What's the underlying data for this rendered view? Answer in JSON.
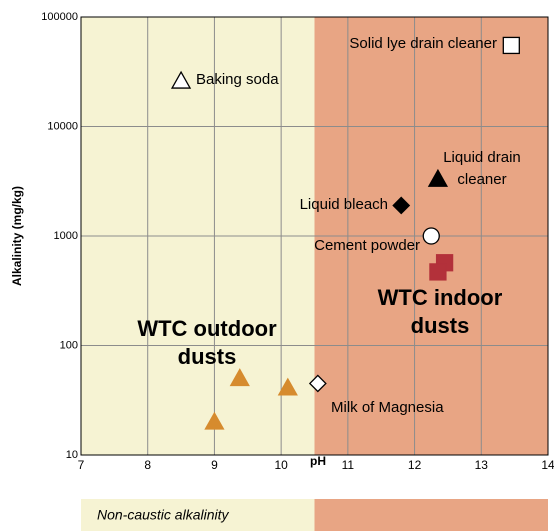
{
  "chart_data": {
    "type": "scatter",
    "x_label": "pH",
    "y_label": "Alkalinity (mg/kg)",
    "xlim": [
      7,
      14
    ],
    "xticks": [
      7,
      8,
      9,
      10,
      11,
      12,
      13,
      14
    ],
    "ylim": [
      10,
      100000
    ],
    "yticks": [
      10,
      100,
      1000,
      10000,
      100000
    ],
    "log_y": true,
    "grid": true,
    "regions": [
      {
        "xlim": [
          7,
          10.5
        ],
        "color": "#f6f3d3",
        "label": "Non-caustic alkalinity"
      },
      {
        "xlim": [
          10.5,
          14
        ],
        "color": "#e8a584"
      }
    ],
    "series": [
      {
        "name": "Solid lye drain cleaner",
        "marker": "square",
        "filled": false,
        "color": "#000000",
        "label_color": "#000000",
        "x": [
          13.45
        ],
        "values": [
          55000
        ]
      },
      {
        "name": "Baking soda",
        "marker": "triangle",
        "filled": false,
        "color": "#000000",
        "label_color": "#000000",
        "x": [
          8.5
        ],
        "values": [
          26000
        ]
      },
      {
        "name": "Liquid drain\ncleaner",
        "marker": "triangle",
        "filled": true,
        "color": "#000000",
        "label_color": "#000000",
        "x": [
          12.35
        ],
        "values": [
          3300
        ]
      },
      {
        "name": "Liquid bleach",
        "marker": "diamond",
        "filled": true,
        "color": "#000000",
        "label_color": "#000000",
        "x": [
          11.8
        ],
        "values": [
          1900
        ]
      },
      {
        "name": "Cement powder",
        "marker": "circle",
        "filled": false,
        "color": "#000000",
        "label_color": "#000000",
        "x": [
          12.25
        ],
        "values": [
          1000
        ]
      },
      {
        "name": "WTC indoor\ndusts",
        "marker": "square",
        "filled": true,
        "color": "#b3313a",
        "label_color": "#b3313a",
        "x": [
          12.45,
          12.35
        ],
        "values": [
          570,
          470
        ]
      },
      {
        "name": "Milk of Magnesia",
        "marker": "diamond",
        "filled": false,
        "color": "#000000",
        "label_color": "#000000",
        "x": [
          10.55
        ],
        "values": [
          45
        ]
      },
      {
        "name": "WTC outdoor\ndusts",
        "marker": "triangle",
        "filled": true,
        "color": "#d68b2e",
        "label_color": "#d68b2e",
        "x": [
          9.0,
          9.38,
          10.1
        ],
        "values": [
          20,
          50,
          41
        ]
      }
    ]
  }
}
